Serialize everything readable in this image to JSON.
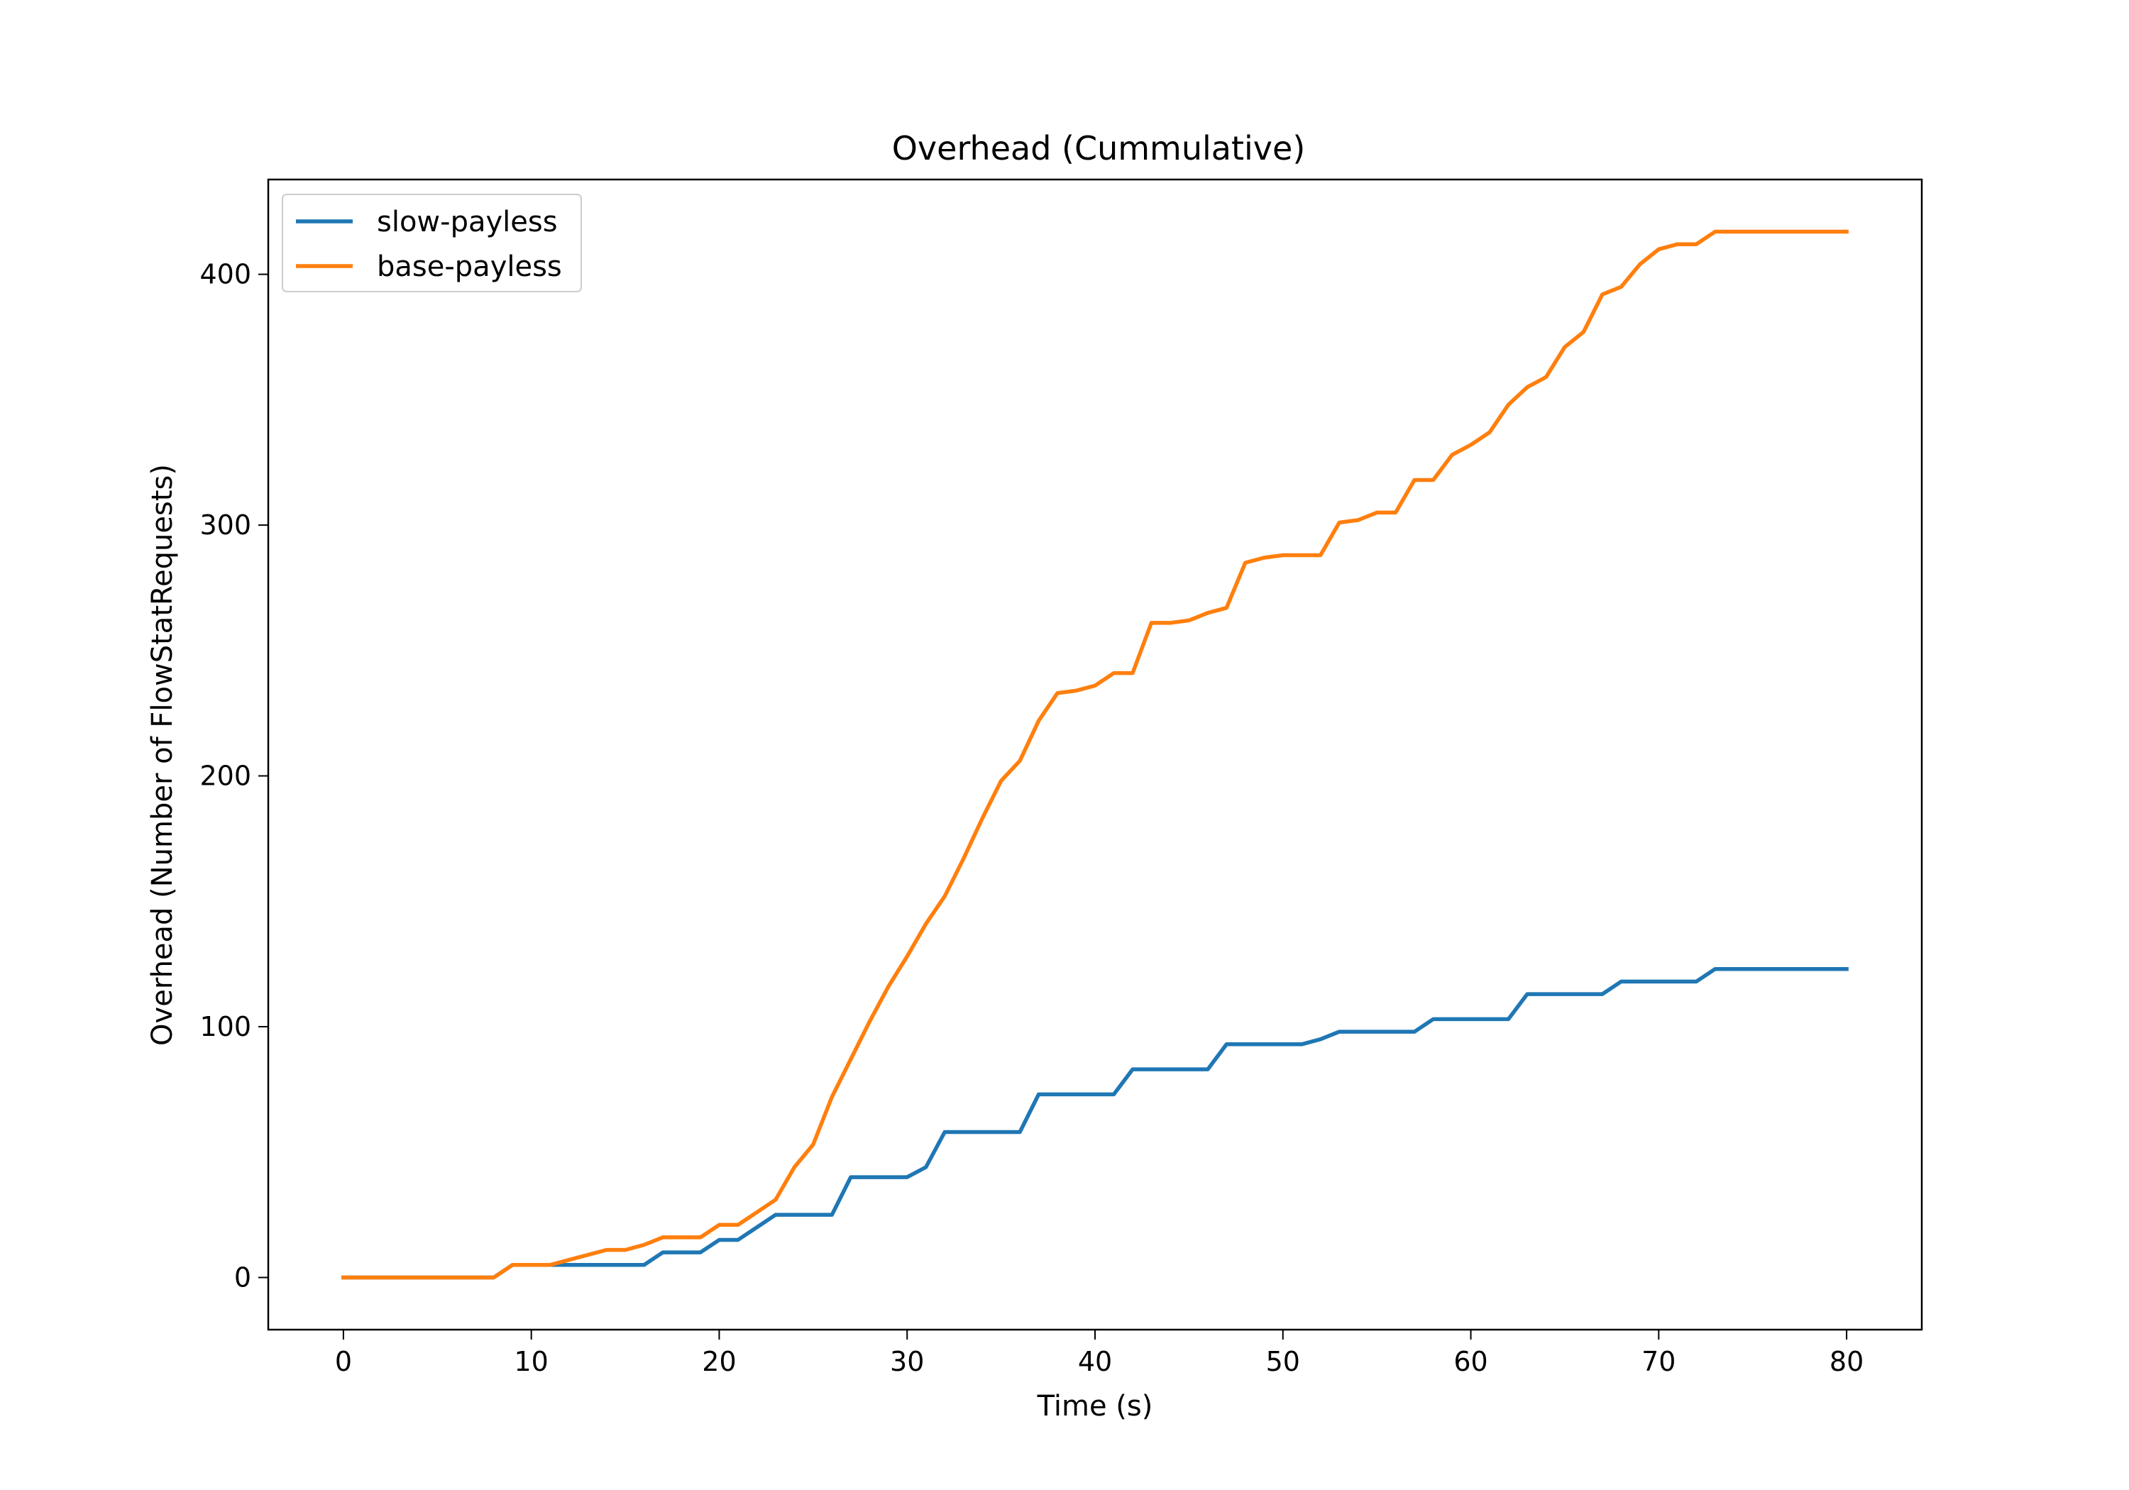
{
  "chart_data": {
    "type": "line",
    "title": "Overhead (Cummulative)",
    "xlabel": "Time (s)",
    "ylabel": "Overhead (Number of FlowStatRequests)",
    "xlim": [
      -4,
      84
    ],
    "ylim": [
      -20.8,
      437.8
    ],
    "xticks": [
      0,
      10,
      20,
      30,
      40,
      50,
      60,
      70,
      80
    ],
    "yticks": [
      0,
      100,
      200,
      300,
      400
    ],
    "grid": false,
    "legend_position": "top-left",
    "x": [
      0,
      1,
      2,
      3,
      4,
      5,
      6,
      7,
      8,
      9,
      10,
      11,
      12,
      13,
      14,
      15,
      16,
      17,
      18,
      19,
      20,
      21,
      22,
      23,
      24,
      25,
      26,
      27,
      28,
      29,
      30,
      31,
      32,
      33,
      34,
      35,
      36,
      37,
      38,
      39,
      40,
      41,
      42,
      43,
      44,
      45,
      46,
      47,
      48,
      49,
      50,
      51,
      52,
      53,
      54,
      55,
      56,
      57,
      58,
      59,
      60,
      61,
      62,
      63,
      64,
      65,
      66,
      67,
      68,
      69,
      70,
      71,
      72,
      73,
      74,
      75,
      76,
      77,
      78,
      79,
      80
    ],
    "series": [
      {
        "name": "slow-payless",
        "color": "#1f77b4",
        "values": [
          0,
          0,
          0,
          0,
          0,
          0,
          0,
          0,
          0,
          5,
          5,
          5,
          5,
          5,
          5,
          5,
          5,
          10,
          10,
          10,
          15,
          15,
          20,
          25,
          25,
          25,
          25,
          40,
          40,
          40,
          40,
          44,
          58,
          58,
          58,
          58,
          58,
          73,
          73,
          73,
          73,
          73,
          83,
          83,
          83,
          83,
          83,
          93,
          93,
          93,
          93,
          93,
          95,
          98,
          98,
          98,
          98,
          98,
          103,
          103,
          103,
          103,
          103,
          113,
          113,
          113,
          113,
          113,
          118,
          118,
          118,
          118,
          118,
          123,
          123,
          123,
          123,
          123,
          123,
          123,
          123
        ]
      },
      {
        "name": "base-payless",
        "color": "#ff7f0e",
        "values": [
          0,
          0,
          0,
          0,
          0,
          0,
          0,
          0,
          0,
          5,
          5,
          5,
          7,
          9,
          11,
          11,
          13,
          16,
          16,
          16,
          21,
          21,
          26,
          31,
          44,
          53,
          72,
          87,
          102,
          116,
          128,
          141,
          152,
          167,
          183,
          198,
          206,
          222,
          233,
          234,
          236,
          241,
          241,
          261,
          261,
          262,
          265,
          267,
          285,
          287,
          288,
          288,
          288,
          301,
          302,
          305,
          305,
          318,
          318,
          328,
          332,
          337,
          348,
          355,
          359,
          371,
          377,
          392,
          395,
          404,
          410,
          412,
          412,
          417,
          417,
          417,
          417,
          417,
          417,
          417,
          417
        ]
      }
    ]
  }
}
